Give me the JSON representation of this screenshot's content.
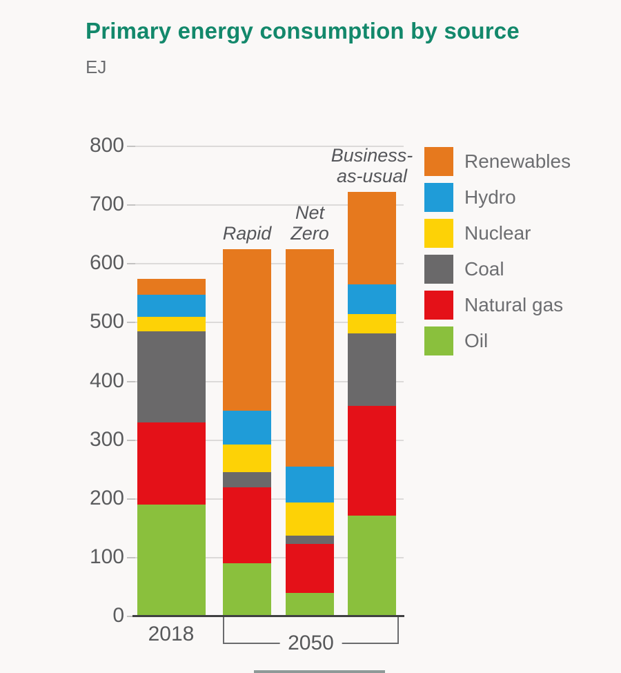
{
  "page": {
    "background": "#faf8f7"
  },
  "chart_data": {
    "type": "bar",
    "stacked": true,
    "title": "Primary energy consumption by source",
    "ylabel": "EJ",
    "xlabel": "",
    "ylim": [
      0,
      800
    ],
    "ytick_interval": 100,
    "grid": true,
    "legend_position": "right",
    "categories": [
      "2018",
      "Rapid",
      "Net Zero",
      "Business-as-usual"
    ],
    "series": [
      {
        "name": "Oil",
        "color": "#8ac03d",
        "values": [
          190,
          90,
          40,
          172
        ]
      },
      {
        "name": "Natural gas",
        "color": "#e41118",
        "values": [
          140,
          130,
          83,
          186
        ]
      },
      {
        "name": "Coal",
        "color": "#6a696a",
        "values": [
          155,
          25,
          14,
          124
        ]
      },
      {
        "name": "Nuclear",
        "color": "#fdd206",
        "values": [
          25,
          47,
          57,
          32
        ]
      },
      {
        "name": "Hydro",
        "color": "#1f9cd8",
        "values": [
          37,
          58,
          61,
          51
        ]
      },
      {
        "name": "Renewables",
        "color": "#e6791e",
        "values": [
          28,
          275,
          370,
          158
        ]
      }
    ],
    "legend_order": [
      "Renewables",
      "Hydro",
      "Nuclear",
      "Coal",
      "Natural gas",
      "Oil"
    ],
    "bar_annotations": [
      {
        "bar": 1,
        "lines": [
          "Rapid"
        ]
      },
      {
        "bar": 2,
        "lines": [
          "Net",
          "Zero"
        ]
      },
      {
        "bar": 3,
        "lines": [
          "Business-",
          "as-usual"
        ]
      }
    ],
    "x_group_labels": [
      {
        "label": "2018",
        "bars": [
          0
        ],
        "bracket": false
      },
      {
        "label": "2050",
        "bars": [
          1,
          2,
          3
        ],
        "bracket": true
      }
    ]
  },
  "colors": {
    "title": "#13886b",
    "axis_text": "#5b5c5e",
    "legend_text": "#6d6e71",
    "gridline": "#dcdad9",
    "baseline": "#3f4041",
    "bracket": "#6a6b6d"
  }
}
